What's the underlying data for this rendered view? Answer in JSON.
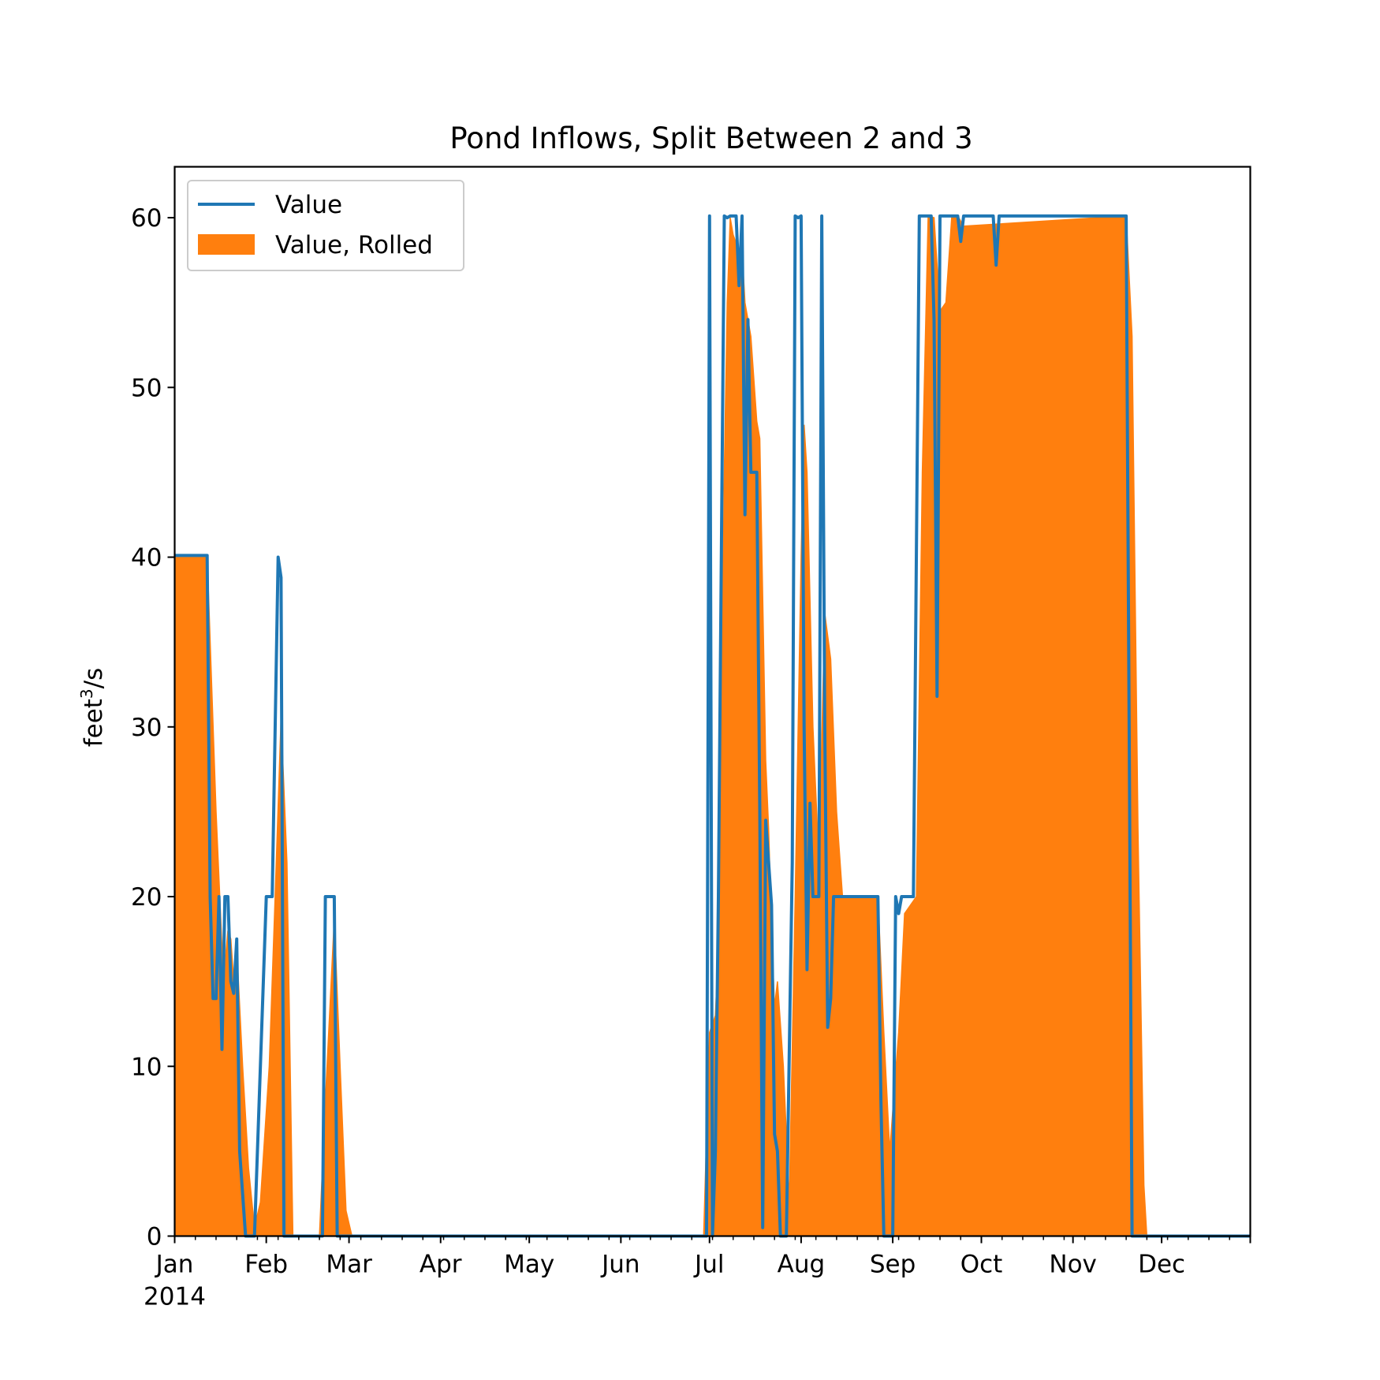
{
  "chart_data": {
    "type": "area",
    "title": "Pond Inflows, Split Between 2 and 3",
    "ylabel_base": "feet",
    "ylabel_sup": "3",
    "ylabel_tail": "/s",
    "xlabel": "",
    "ylim": [
      0,
      63
    ],
    "yticks": [
      0,
      10,
      20,
      30,
      40,
      50,
      60
    ],
    "xlim": [
      "2014-01-01",
      "2014-12-31"
    ],
    "xticks": [
      {
        "date": "2014-01-01",
        "label": "Jan",
        "sublabel": "2014"
      },
      {
        "date": "2014-02-01",
        "label": "Feb",
        "sublabel": ""
      },
      {
        "date": "2014-03-01",
        "label": "Mar",
        "sublabel": ""
      },
      {
        "date": "2014-04-01",
        "label": "Apr",
        "sublabel": ""
      },
      {
        "date": "2014-05-01",
        "label": "May",
        "sublabel": ""
      },
      {
        "date": "2014-06-01",
        "label": "Jun",
        "sublabel": ""
      },
      {
        "date": "2014-07-01",
        "label": "Jul",
        "sublabel": ""
      },
      {
        "date": "2014-08-01",
        "label": "Aug",
        "sublabel": ""
      },
      {
        "date": "2014-09-01",
        "label": "Sep",
        "sublabel": ""
      },
      {
        "date": "2014-10-01",
        "label": "Oct",
        "sublabel": ""
      },
      {
        "date": "2014-11-01",
        "label": "Nov",
        "sublabel": ""
      },
      {
        "date": "2014-12-01",
        "label": "Dec",
        "sublabel": ""
      }
    ],
    "legend_position": "upper-left",
    "grid": false,
    "series": [
      {
        "name": "Value",
        "kind": "line",
        "color": "#1f77b4",
        "points": [
          [
            "2014-01-01",
            40.1
          ],
          [
            "2014-01-12",
            40.1
          ],
          [
            "2014-01-13",
            20
          ],
          [
            "2014-01-14",
            14
          ],
          [
            "2014-01-15",
            14
          ],
          [
            "2014-01-16",
            20
          ],
          [
            "2014-01-17",
            11
          ],
          [
            "2014-01-18",
            20
          ],
          [
            "2014-01-19",
            20
          ],
          [
            "2014-01-20",
            15
          ],
          [
            "2014-01-21",
            14.3
          ],
          [
            "2014-01-22",
            17.5
          ],
          [
            "2014-01-23",
            5
          ],
          [
            "2014-01-25",
            0
          ],
          [
            "2014-01-28",
            0
          ],
          [
            "2014-01-30",
            10
          ],
          [
            "2014-02-01",
            20
          ],
          [
            "2014-02-03",
            20
          ],
          [
            "2014-02-05",
            40
          ],
          [
            "2014-02-06",
            38.8
          ],
          [
            "2014-02-07",
            0
          ],
          [
            "2014-02-20",
            0
          ],
          [
            "2014-02-21",
            20
          ],
          [
            "2014-02-24",
            20
          ],
          [
            "2014-02-25",
            0
          ],
          [
            "2014-06-30",
            0
          ],
          [
            "2014-07-01",
            60.1
          ],
          [
            "2014-07-02",
            0
          ],
          [
            "2014-07-03",
            5
          ],
          [
            "2014-07-04",
            20
          ],
          [
            "2014-07-06",
            60.1
          ],
          [
            "2014-07-07",
            60
          ],
          [
            "2014-07-08",
            60.1
          ],
          [
            "2014-07-10",
            60.1
          ],
          [
            "2014-07-11",
            56
          ],
          [
            "2014-07-12",
            60.1
          ],
          [
            "2014-07-13",
            42.5
          ],
          [
            "2014-07-14",
            54
          ],
          [
            "2014-07-15",
            45
          ],
          [
            "2014-07-17",
            45
          ],
          [
            "2014-07-18",
            25
          ],
          [
            "2014-07-19",
            0.5
          ],
          [
            "2014-07-20",
            24.5
          ],
          [
            "2014-07-22",
            19.5
          ],
          [
            "2014-07-23",
            6
          ],
          [
            "2014-07-24",
            5
          ],
          [
            "2014-07-25",
            0
          ],
          [
            "2014-07-27",
            0
          ],
          [
            "2014-07-29",
            22
          ],
          [
            "2014-07-30",
            60.1
          ],
          [
            "2014-07-31",
            60
          ],
          [
            "2014-08-01",
            60.1
          ],
          [
            "2014-08-02",
            30
          ],
          [
            "2014-08-03",
            15.7
          ],
          [
            "2014-08-04",
            25.5
          ],
          [
            "2014-08-05",
            20
          ],
          [
            "2014-08-07",
            20
          ],
          [
            "2014-08-08",
            60.1
          ],
          [
            "2014-08-09",
            30
          ],
          [
            "2014-08-10",
            12.3
          ],
          [
            "2014-08-11",
            14
          ],
          [
            "2014-08-12",
            20
          ],
          [
            "2014-08-27",
            20
          ],
          [
            "2014-08-28",
            8
          ],
          [
            "2014-08-29",
            0
          ],
          [
            "2014-09-01",
            0
          ],
          [
            "2014-09-02",
            20
          ],
          [
            "2014-09-03",
            19
          ],
          [
            "2014-09-04",
            20
          ],
          [
            "2014-09-08",
            20
          ],
          [
            "2014-09-10",
            60.1
          ],
          [
            "2014-09-14",
            60.1
          ],
          [
            "2014-09-15",
            54
          ],
          [
            "2014-09-16",
            31.8
          ],
          [
            "2014-09-17",
            60.1
          ],
          [
            "2014-09-23",
            60.1
          ],
          [
            "2014-09-24",
            58.6
          ],
          [
            "2014-09-25",
            60.1
          ],
          [
            "2014-10-05",
            60.1
          ],
          [
            "2014-10-06",
            57.2
          ],
          [
            "2014-10-07",
            60.1
          ],
          [
            "2014-11-19",
            60.1
          ],
          [
            "2014-11-20",
            30
          ],
          [
            "2014-11-21",
            0
          ],
          [
            "2014-12-31",
            0
          ]
        ]
      },
      {
        "name": "Value, Rolled",
        "kind": "area",
        "color": "#ff7f0e",
        "points": [
          [
            "2014-01-01",
            40.1
          ],
          [
            "2014-01-12",
            40.1
          ],
          [
            "2014-01-15",
            25
          ],
          [
            "2014-01-17",
            17
          ],
          [
            "2014-01-18",
            16
          ],
          [
            "2014-01-19",
            18
          ],
          [
            "2014-01-20",
            17.5
          ],
          [
            "2014-01-21",
            15
          ],
          [
            "2014-01-22",
            17
          ],
          [
            "2014-01-24",
            10
          ],
          [
            "2014-01-26",
            4
          ],
          [
            "2014-01-28",
            0.5
          ],
          [
            "2014-01-30",
            2
          ],
          [
            "2014-02-02",
            10
          ],
          [
            "2014-02-04",
            20
          ],
          [
            "2014-02-06",
            30.5
          ],
          [
            "2014-02-08",
            22
          ],
          [
            "2014-02-10",
            0
          ],
          [
            "2014-02-19",
            0
          ],
          [
            "2014-02-21",
            8
          ],
          [
            "2014-02-24",
            18.7
          ],
          [
            "2014-02-26",
            10
          ],
          [
            "2014-02-28",
            1.5
          ],
          [
            "2014-03-02",
            0
          ],
          [
            "2014-06-29",
            0
          ],
          [
            "2014-07-01",
            12
          ],
          [
            "2014-07-03",
            13
          ],
          [
            "2014-07-04",
            17
          ],
          [
            "2014-07-05",
            30
          ],
          [
            "2014-07-06",
            45
          ],
          [
            "2014-07-07",
            55
          ],
          [
            "2014-07-08",
            60
          ],
          [
            "2014-07-09",
            59
          ],
          [
            "2014-07-10",
            58.5
          ],
          [
            "2014-07-11",
            57.5
          ],
          [
            "2014-07-12",
            58
          ],
          [
            "2014-07-13",
            55
          ],
          [
            "2014-07-15",
            53
          ],
          [
            "2014-07-17",
            48
          ],
          [
            "2014-07-18",
            47
          ],
          [
            "2014-07-20",
            28
          ],
          [
            "2014-07-21",
            24
          ],
          [
            "2014-07-22",
            18
          ],
          [
            "2014-07-23",
            13.5
          ],
          [
            "2014-07-24",
            15
          ],
          [
            "2014-07-26",
            10
          ],
          [
            "2014-07-28",
            2
          ],
          [
            "2014-07-30",
            20
          ],
          [
            "2014-08-01",
            40
          ],
          [
            "2014-08-02",
            47.8
          ],
          [
            "2014-08-03",
            45
          ],
          [
            "2014-08-05",
            30
          ],
          [
            "2014-08-07",
            22
          ],
          [
            "2014-08-09",
            36.7
          ],
          [
            "2014-08-11",
            34
          ],
          [
            "2014-08-13",
            25
          ],
          [
            "2014-08-15",
            20
          ],
          [
            "2014-08-27",
            20
          ],
          [
            "2014-08-29",
            12
          ],
          [
            "2014-08-31",
            5
          ],
          [
            "2014-09-03",
            12
          ],
          [
            "2014-09-05",
            19
          ],
          [
            "2014-09-09",
            20
          ],
          [
            "2014-09-11",
            45
          ],
          [
            "2014-09-13",
            60.1
          ],
          [
            "2014-09-15",
            60
          ],
          [
            "2014-09-17",
            54.5
          ],
          [
            "2014-09-19",
            55
          ],
          [
            "2014-09-21",
            60.1
          ],
          [
            "2014-09-23",
            60.1
          ],
          [
            "2014-09-25",
            59.5
          ],
          [
            "2014-11-19",
            60.1
          ],
          [
            "2014-11-21",
            53
          ],
          [
            "2014-11-23",
            24
          ],
          [
            "2014-11-25",
            3
          ],
          [
            "2014-11-26",
            0
          ],
          [
            "2014-12-31",
            0
          ]
        ]
      }
    ]
  }
}
